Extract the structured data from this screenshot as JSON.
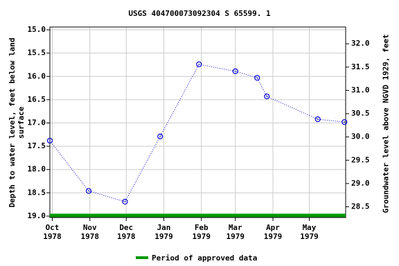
{
  "chart_data": {
    "type": "line",
    "title": "USGS 404700073092304 S 65599. 1",
    "y_label": "Depth to water level, feet below land surface",
    "y2_label": "Groundwater level above NGVD 1929, feet",
    "x": [
      -2,
      30,
      60,
      89,
      121,
      151,
      169,
      177,
      219,
      241
    ],
    "series": [
      {
        "name": "Depth to water level",
        "color": "#0000cc",
        "values": [
          17.38,
          18.46,
          18.69,
          17.29,
          15.74,
          15.89,
          16.03,
          16.43,
          16.92,
          16.98
        ]
      }
    ],
    "xlim": [
      -2,
      242
    ],
    "xticks": [
      {
        "value": 0,
        "label": [
          "Oct",
          "1978"
        ]
      },
      {
        "value": 31,
        "label": [
          "Nov",
          "1978"
        ]
      },
      {
        "value": 61,
        "label": [
          "Dec",
          "1978"
        ]
      },
      {
        "value": 92,
        "label": [
          "Jan",
          "1979"
        ]
      },
      {
        "value": 123,
        "label": [
          "Feb",
          "1979"
        ]
      },
      {
        "value": 151,
        "label": [
          "Mar",
          "1979"
        ]
      },
      {
        "value": 182,
        "label": [
          "Apr",
          "1979"
        ]
      },
      {
        "value": 212,
        "label": [
          "May",
          "1979"
        ]
      }
    ],
    "ylim": [
      14.94,
      19.03
    ],
    "y_inverted": true,
    "yticks": [
      {
        "value": 15,
        "label": "15.0"
      },
      15.5,
      {
        "value": 16,
        "label": "16.0"
      },
      16.5,
      {
        "value": 17,
        "label": "17.0"
      },
      17.5,
      {
        "value": 18,
        "label": "18.0"
      },
      18.5,
      {
        "value": 19,
        "label": "19.0"
      }
    ],
    "y2lim": [
      28.27,
      32.36
    ],
    "y2ticks": [
      28.5,
      {
        "value": 29,
        "label": "29.0"
      },
      29.5,
      {
        "value": 30,
        "label": "30.0"
      },
      30.5,
      {
        "value": 31,
        "label": "31.0"
      },
      31.5,
      {
        "value": 32,
        "label": "32.0"
      }
    ],
    "grid": true,
    "approved_period": {
      "name": "Period of approved data",
      "color": "#009900",
      "x": [
        -2,
        242
      ]
    }
  }
}
